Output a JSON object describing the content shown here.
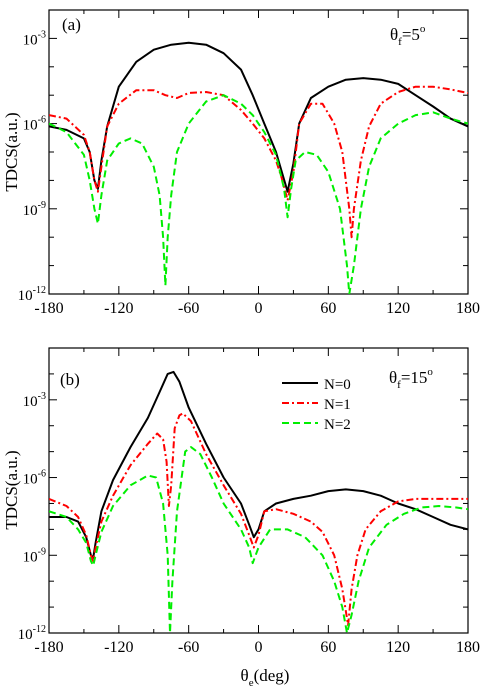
{
  "chart_data": [
    {
      "type": "line",
      "panel_label": "(a)",
      "annotation": {
        "symbol": "θ",
        "sub": "f",
        "value": "=5",
        "sup": "o"
      },
      "ylabel": "TDCS(a.u.)",
      "xlabel": "",
      "xlim": [
        -180,
        180
      ],
      "y_scale": "log",
      "ylim": [
        1e-12,
        0.01
      ],
      "x_ticks": [
        "-180",
        "-120",
        "-60",
        "0",
        "60",
        "120",
        "180"
      ],
      "y_ticks": [
        {
          "value": -12,
          "base": "10",
          "exp": "-12"
        },
        {
          "value": -9,
          "base": "10",
          "exp": "-9"
        },
        {
          "value": -6,
          "base": "10",
          "exp": "-6"
        },
        {
          "value": -3,
          "base": "10",
          "exp": "-3"
        }
      ],
      "series": [
        {
          "name": "N=0",
          "color": "#000000",
          "dash": "solid",
          "points": [
            [
              -180,
              8e-07
            ],
            [
              -165,
              6e-07
            ],
            [
              -150,
              3e-07
            ],
            [
              -145,
              1e-07
            ],
            [
              -141,
              1e-08
            ],
            [
              -138,
              5e-09
            ],
            [
              -135,
              5e-08
            ],
            [
              -130,
              8e-07
            ],
            [
              -120,
              2e-05
            ],
            [
              -105,
              0.00015
            ],
            [
              -90,
              0.0004
            ],
            [
              -75,
              0.0006
            ],
            [
              -60,
              0.0007
            ],
            [
              -45,
              0.0006
            ],
            [
              -30,
              0.0003
            ],
            [
              -15,
              8e-05
            ],
            [
              -5,
              1e-05
            ],
            [
              5,
              1e-06
            ],
            [
              15,
              1e-07
            ],
            [
              20,
              2e-08
            ],
            [
              25,
              4e-09
            ],
            [
              30,
              4e-08
            ],
            [
              35,
              1e-06
            ],
            [
              45,
              8e-06
            ],
            [
              60,
              2e-05
            ],
            [
              75,
              3.5e-05
            ],
            [
              90,
              4e-05
            ],
            [
              105,
              3.5e-05
            ],
            [
              120,
              2.5e-05
            ],
            [
              135,
              1e-05
            ],
            [
              150,
              4e-06
            ],
            [
              165,
              1.5e-06
            ],
            [
              180,
              8e-07
            ]
          ]
        },
        {
          "name": "N=1",
          "color": "#ff0000",
          "dash": "dashdot",
          "points": [
            [
              -180,
              2e-06
            ],
            [
              -165,
              1.5e-06
            ],
            [
              -150,
              4e-07
            ],
            [
              -145,
              1e-07
            ],
            [
              -141,
              1e-08
            ],
            [
              -138,
              4e-09
            ],
            [
              -135,
              3e-08
            ],
            [
              -130,
              8e-07
            ],
            [
              -120,
              5e-06
            ],
            [
              -105,
              1.5e-05
            ],
            [
              -90,
              1.5e-05
            ],
            [
              -80,
              1e-05
            ],
            [
              -70,
              8e-06
            ],
            [
              -60,
              1.2e-05
            ],
            [
              -45,
              1.3e-05
            ],
            [
              -30,
              1e-05
            ],
            [
              -15,
              3e-06
            ],
            [
              -5,
              1e-06
            ],
            [
              5,
              3e-07
            ],
            [
              15,
              5e-08
            ],
            [
              20,
              1.2e-08
            ],
            [
              25,
              2e-09
            ],
            [
              30,
              2e-08
            ],
            [
              35,
              1e-06
            ],
            [
              45,
              5e-06
            ],
            [
              55,
              5e-06
            ],
            [
              65,
              1e-06
            ],
            [
              72,
              1e-07
            ],
            [
              78,
              1e-09
            ],
            [
              80,
              1e-10
            ],
            [
              82,
              1e-09
            ],
            [
              88,
              5e-08
            ],
            [
              95,
              8e-07
            ],
            [
              105,
              5e-06
            ],
            [
              120,
              1.3e-05
            ],
            [
              135,
              2e-05
            ],
            [
              150,
              2e-05
            ],
            [
              165,
              1.6e-05
            ],
            [
              180,
              1.2e-05
            ]
          ]
        },
        {
          "name": "N=2",
          "color": "#00ee00",
          "dash": "dashed",
          "points": [
            [
              -180,
              1e-06
            ],
            [
              -165,
              5e-07
            ],
            [
              -150,
              8e-08
            ],
            [
              -145,
              1e-08
            ],
            [
              -141,
              1e-09
            ],
            [
              -138,
              3e-10
            ],
            [
              -135,
              3e-09
            ],
            [
              -130,
              5e-08
            ],
            [
              -120,
              2e-07
            ],
            [
              -110,
              3e-07
            ],
            [
              -100,
              2e-07
            ],
            [
              -90,
              3e-08
            ],
            [
              -85,
              3e-09
            ],
            [
              -82,
              1e-10
            ],
            [
              -80,
              2e-12
            ],
            [
              -78,
              1e-10
            ],
            [
              -75,
              3e-09
            ],
            [
              -70,
              1e-07
            ],
            [
              -60,
              1e-06
            ],
            [
              -45,
              6e-06
            ],
            [
              -30,
              1e-05
            ],
            [
              -15,
              5e-06
            ],
            [
              -5,
              2e-06
            ],
            [
              5,
              5e-07
            ],
            [
              15,
              8e-08
            ],
            [
              22,
              5e-09
            ],
            [
              25,
              5e-10
            ],
            [
              28,
              5e-09
            ],
            [
              32,
              5e-08
            ],
            [
              40,
              1e-07
            ],
            [
              50,
              8e-08
            ],
            [
              60,
              2e-08
            ],
            [
              70,
              1e-09
            ],
            [
              76,
              1e-11
            ],
            [
              78,
              1e-12
            ],
            [
              82,
              1e-11
            ],
            [
              88,
              1e-09
            ],
            [
              95,
              3e-08
            ],
            [
              105,
              3e-07
            ],
            [
              120,
              1e-06
            ],
            [
              135,
              2e-06
            ],
            [
              150,
              2.5e-06
            ],
            [
              165,
              1.5e-06
            ],
            [
              180,
              1e-06
            ]
          ]
        }
      ]
    },
    {
      "type": "line",
      "panel_label": "(b)",
      "annotation": {
        "symbol": "θ",
        "sub": "f",
        "value": "=15",
        "sup": "o"
      },
      "ylabel": "TDCS(a.u.)",
      "xlabel": {
        "symbol": "θ",
        "sub": "e",
        "rest": "(deg)"
      },
      "xlim": [
        -180,
        180
      ],
      "y_scale": "log",
      "ylim": [
        1e-12,
        0.1
      ],
      "x_ticks": [
        "-180",
        "-120",
        "-60",
        "0",
        "60",
        "120",
        "180"
      ],
      "y_ticks": [
        {
          "value": -12,
          "base": "10",
          "exp": "-12"
        },
        {
          "value": -9,
          "base": "10",
          "exp": "-9"
        },
        {
          "value": -6,
          "base": "10",
          "exp": "-6"
        },
        {
          "value": -3,
          "base": "10",
          "exp": "-3"
        }
      ],
      "legend": {
        "placement": "top-right",
        "entries": [
          "N=0",
          "N=1",
          "N=2"
        ]
      },
      "series": [
        {
          "name": "N=0",
          "color": "#000000",
          "dash": "solid",
          "points": [
            [
              -180,
              3e-08
            ],
            [
              -165,
              3e-08
            ],
            [
              -155,
              2e-08
            ],
            [
              -148,
              5e-09
            ],
            [
              -144,
              1e-09
            ],
            [
              -142,
              8e-10
            ],
            [
              -140,
              3e-09
            ],
            [
              -135,
              5e-08
            ],
            [
              -125,
              8e-07
            ],
            [
              -110,
              1.5e-05
            ],
            [
              -95,
              0.0002
            ],
            [
              -85,
              0.002
            ],
            [
              -78,
              0.01
            ],
            [
              -73,
              0.012
            ],
            [
              -68,
              0.005
            ],
            [
              -60,
              0.0005
            ],
            [
              -45,
              2e-05
            ],
            [
              -30,
              1e-06
            ],
            [
              -15,
              1e-07
            ],
            [
              -8,
              1.5e-08
            ],
            [
              -4,
              5e-09
            ],
            [
              0,
              1e-08
            ],
            [
              5,
              5e-08
            ],
            [
              15,
              1e-07
            ],
            [
              30,
              1.5e-07
            ],
            [
              45,
              2e-07
            ],
            [
              60,
              3e-07
            ],
            [
              75,
              3.5e-07
            ],
            [
              90,
              3e-07
            ],
            [
              105,
              2e-07
            ],
            [
              120,
              1e-07
            ],
            [
              135,
              6e-08
            ],
            [
              150,
              3e-08
            ],
            [
              165,
              1.5e-08
            ],
            [
              180,
              1e-08
            ]
          ]
        },
        {
          "name": "N=1",
          "color": "#ff0000",
          "dash": "dashdot",
          "points": [
            [
              -180,
              1.5e-07
            ],
            [
              -165,
              8e-08
            ],
            [
              -155,
              3e-08
            ],
            [
              -148,
              6e-09
            ],
            [
              -144,
              1e-09
            ],
            [
              -142,
              6e-10
            ],
            [
              -140,
              2e-09
            ],
            [
              -135,
              2e-08
            ],
            [
              -125,
              2e-07
            ],
            [
              -110,
              3e-06
            ],
            [
              -95,
              2e-05
            ],
            [
              -87,
              5e-05
            ],
            [
              -82,
              3e-05
            ],
            [
              -79,
              4e-06
            ],
            [
              -77,
              8e-08
            ],
            [
              -75,
              5e-07
            ],
            [
              -72,
              8e-05
            ],
            [
              -68,
              0.00025
            ],
            [
              -65,
              0.0003
            ],
            [
              -58,
              0.00015
            ],
            [
              -45,
              8e-06
            ],
            [
              -30,
              5e-07
            ],
            [
              -15,
              4e-08
            ],
            [
              -8,
              6e-09
            ],
            [
              -4,
              2e-09
            ],
            [
              0,
              6e-09
            ],
            [
              5,
              5e-08
            ],
            [
              15,
              6e-08
            ],
            [
              30,
              4e-08
            ],
            [
              45,
              2e-08
            ],
            [
              55,
              8e-09
            ],
            [
              65,
              1e-09
            ],
            [
              72,
              5e-11
            ],
            [
              77,
              2e-12
            ],
            [
              80,
              5e-11
            ],
            [
              85,
              1e-09
            ],
            [
              92,
              1e-08
            ],
            [
              105,
              5e-08
            ],
            [
              120,
              1.2e-07
            ],
            [
              135,
              1.5e-07
            ],
            [
              150,
              1.5e-07
            ],
            [
              165,
              1.5e-07
            ],
            [
              180,
              1.5e-07
            ]
          ]
        },
        {
          "name": "N=2",
          "color": "#00ee00",
          "dash": "dashed",
          "points": [
            [
              -180,
              5e-08
            ],
            [
              -165,
              3e-08
            ],
            [
              -155,
              1e-08
            ],
            [
              -148,
              3e-09
            ],
            [
              -144,
              6e-10
            ],
            [
              -142,
              4e-10
            ],
            [
              -140,
              1e-09
            ],
            [
              -135,
              8e-09
            ],
            [
              -125,
              8e-08
            ],
            [
              -110,
              5e-07
            ],
            [
              -95,
              1.2e-06
            ],
            [
              -88,
              1e-06
            ],
            [
              -82,
              1e-07
            ],
            [
              -78,
              1e-09
            ],
            [
              -76,
              1e-12
            ],
            [
              -74,
              1e-10
            ],
            [
              -70,
              5e-08
            ],
            [
              -63,
              1e-05
            ],
            [
              -58,
              1.5e-05
            ],
            [
              -50,
              8e-06
            ],
            [
              -40,
              1e-06
            ],
            [
              -30,
              1e-07
            ],
            [
              -15,
              1e-08
            ],
            [
              -8,
              2e-09
            ],
            [
              -5,
              5e-10
            ],
            [
              0,
              2e-09
            ],
            [
              10,
              1e-08
            ],
            [
              25,
              1e-08
            ],
            [
              40,
              5e-09
            ],
            [
              55,
              1e-09
            ],
            [
              65,
              1e-10
            ],
            [
              72,
              1e-11
            ],
            [
              76,
              1e-12
            ],
            [
              80,
              5e-12
            ],
            [
              86,
              1e-10
            ],
            [
              95,
              2e-09
            ],
            [
              110,
              1.5e-08
            ],
            [
              125,
              4e-08
            ],
            [
              140,
              7e-08
            ],
            [
              155,
              8e-08
            ],
            [
              170,
              7e-08
            ],
            [
              180,
              6e-08
            ]
          ]
        }
      ]
    }
  ]
}
